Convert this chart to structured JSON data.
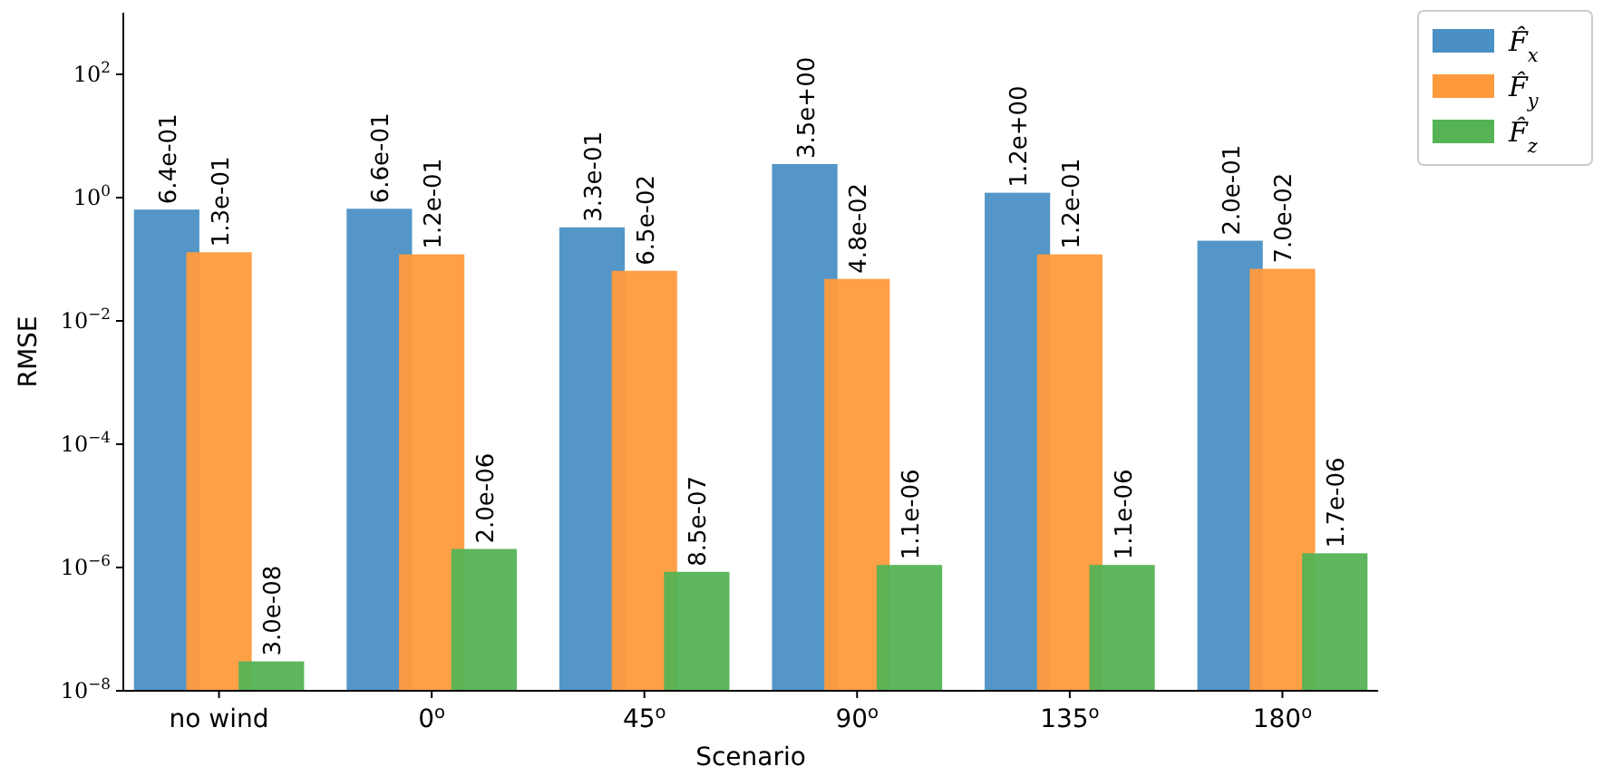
{
  "chart_data": {
    "type": "bar",
    "xlabel": "Scenario",
    "ylabel": "RMSE",
    "categories": [
      "no wind",
      "0$^{o}$",
      "45$^{o}$",
      "90$^{o}$",
      "135$^{o}$",
      "180$^{o}$"
    ],
    "series": [
      {
        "name": "F̂$_{x}$",
        "color": "#4a90c4",
        "values": [
          0.64,
          0.66,
          0.33,
          3.5,
          1.2,
          0.2
        ],
        "value_labels": [
          "6.4e-01",
          "6.6e-01",
          "3.3e-01",
          "3.5e+00",
          "1.2e+00",
          "2.0e-01"
        ]
      },
      {
        "name": "F̂$_{y}$",
        "color": "#ff9a3c",
        "values": [
          0.13,
          0.12,
          0.065,
          0.048,
          0.12,
          0.07
        ],
        "value_labels": [
          "1.3e-01",
          "1.2e-01",
          "6.5e-02",
          "4.8e-02",
          "1.2e-01",
          "7.0e-02"
        ]
      },
      {
        "name": "F̂$_{z}$",
        "color": "#55b355",
        "values": [
          3e-08,
          2e-06,
          8.5e-07,
          1.1e-06,
          1.1e-06,
          1.7e-06
        ],
        "value_labels": [
          "3.0e-08",
          "2.0e-06",
          "8.5e-07",
          "1.1e-06",
          "1.1e-06",
          "1.7e-06"
        ]
      }
    ],
    "log": "y",
    "ylim": [
      1e-08,
      1000
    ],
    "yticks": [
      {
        "value": 1e-08,
        "label": "10$^{−8}$"
      },
      {
        "value": 1e-06,
        "label": "10$^{−6}$"
      },
      {
        "value": 0.0001,
        "label": "10$^{−4}$"
      },
      {
        "value": 0.01,
        "label": "10$^{−2}$"
      },
      {
        "value": 1,
        "label": "10$^{0}$"
      },
      {
        "value": 100,
        "label": "10$^{2}$"
      }
    ],
    "legend": "top right",
    "grid": false
  }
}
